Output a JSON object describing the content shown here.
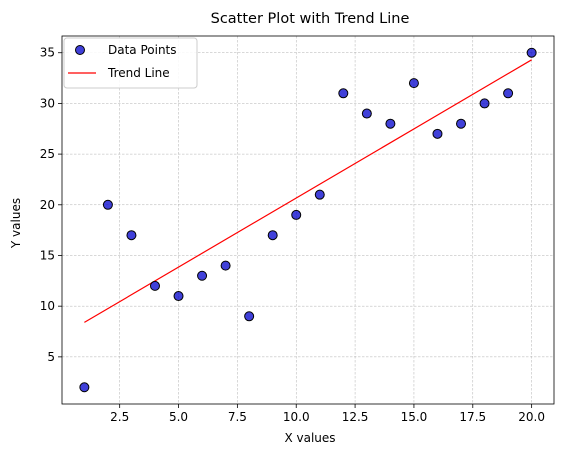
{
  "chart_data": {
    "type": "scatter",
    "title": "Scatter Plot with Trend Line",
    "xlabel": "X values",
    "ylabel": "Y values",
    "xlim": [
      0.05,
      20.95
    ],
    "ylim": [
      0.35,
      36.65
    ],
    "x_ticks": [
      2.5,
      5.0,
      7.5,
      10.0,
      12.5,
      15.0,
      17.5,
      20.0
    ],
    "x_tick_labels": [
      "2.5",
      "5.0",
      "7.5",
      "10.0",
      "12.5",
      "15.0",
      "17.5",
      "20.0"
    ],
    "y_ticks": [
      5,
      10,
      15,
      20,
      25,
      30,
      35
    ],
    "y_tick_labels": [
      "5",
      "10",
      "15",
      "20",
      "25",
      "30",
      "35"
    ],
    "grid": true,
    "legend": {
      "position": "top-left",
      "entries": [
        "Data Points",
        "Trend Line"
      ]
    },
    "series": [
      {
        "name": "Data Points",
        "kind": "scatter",
        "color": "#0000cc",
        "edge_color": "#000000",
        "points": [
          [
            1,
            2
          ],
          [
            2,
            20
          ],
          [
            3,
            17
          ],
          [
            4,
            12
          ],
          [
            5,
            11
          ],
          [
            6,
            13
          ],
          [
            7,
            14
          ],
          [
            8,
            9
          ],
          [
            9,
            17
          ],
          [
            10,
            19
          ],
          [
            11,
            21
          ],
          [
            12,
            31
          ],
          [
            13,
            29
          ],
          [
            14,
            28
          ],
          [
            15,
            32
          ],
          [
            16,
            27
          ],
          [
            17,
            28
          ],
          [
            18,
            30
          ],
          [
            19,
            31
          ],
          [
            20,
            35
          ]
        ]
      },
      {
        "name": "Trend Line",
        "kind": "line",
        "color": "#ff0000",
        "points": [
          [
            1,
            8.4
          ],
          [
            20,
            34.3
          ]
        ]
      }
    ]
  }
}
